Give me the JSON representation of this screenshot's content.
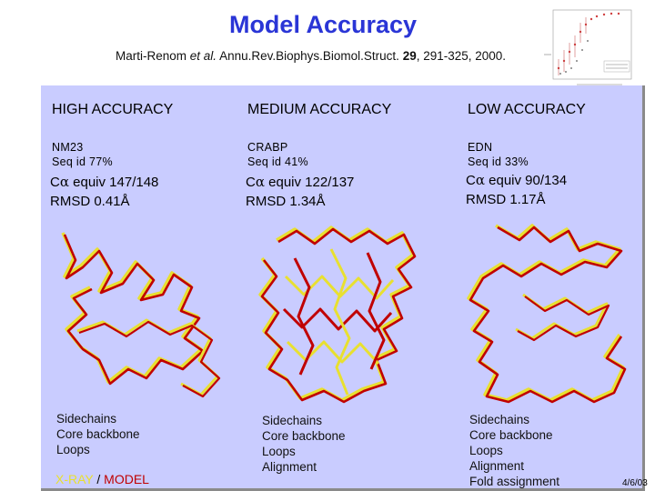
{
  "slide": {
    "title": "Model Accuracy",
    "citation": {
      "authors": "Marti-Renom",
      "etal": "et al.",
      "journal": "Annu.Rev.Biophys.Biomol.Struct.",
      "volume": "29",
      "pages": ", 291-325, 2000."
    },
    "slide_number": "4/6/03"
  },
  "panels": [
    {
      "heading": "HIGH ACCURACY",
      "protein_name": "NM23",
      "seq_id": "Seq id  77%",
      "alpha_symbol": "α",
      "ca_equiv": "C",
      "ca_equiv_value": " equiv 147/148",
      "rmsd": "RMSD 0.41Å",
      "legend": [
        "Sidechains",
        "Core backbone",
        "Loops"
      ]
    },
    {
      "heading": "MEDIUM ACCURACY",
      "protein_name": "CRABP",
      "seq_id": "Seq id  41%",
      "alpha_symbol": "α",
      "ca_equiv": "C",
      "ca_equiv_value": " equiv 122/137",
      "rmsd": "RMSD 1.34Å",
      "legend": [
        "Sidechains",
        "Core backbone",
        "Loops",
        "Alignment"
      ]
    },
    {
      "heading": "LOW ACCURACY",
      "protein_name": "EDN",
      "seq_id": "Seq id  33%",
      "alpha_symbol": "α",
      "ca_equiv": "C",
      "ca_equiv_value": " equiv 90/134",
      "rmsd": "RMSD 1.17Å",
      "legend": [
        "Sidechains",
        "Core backbone",
        "Loops",
        "Alignment",
        "Fold assignment"
      ]
    }
  ],
  "key": {
    "xray": "X-RAY",
    "separator": " / ",
    "model": "MODEL"
  },
  "colors": {
    "title": "#2a35d6",
    "panel_bg": "#c9ccff",
    "xray_trace": "#e8e030",
    "model_trace": "#c00000"
  }
}
